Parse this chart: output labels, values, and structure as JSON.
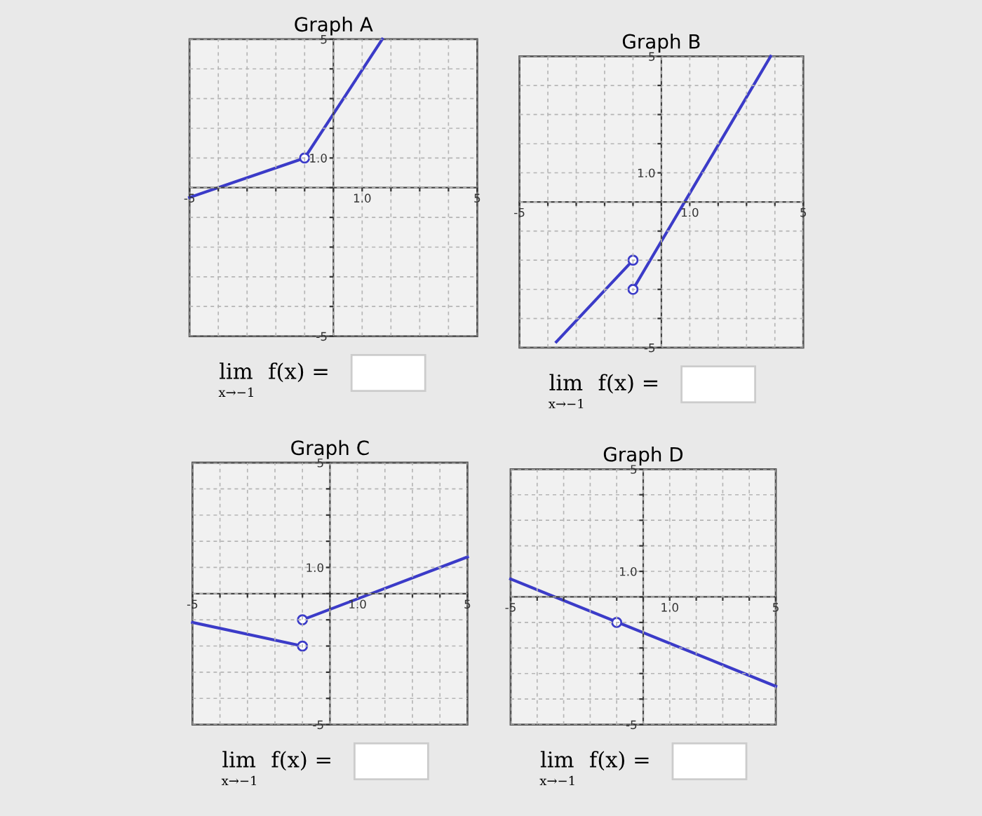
{
  "chart_data": [
    {
      "type": "line",
      "title": "Graph A",
      "xlim": [
        -5,
        5
      ],
      "ylim": [
        -5,
        5
      ],
      "xticks": [
        -5,
        {
          "value": -4,
          "label": null
        },
        {
          "value": -3,
          "label": null
        },
        {
          "value": -2,
          "label": null
        },
        {
          "value": -1,
          "label": null
        },
        {
          "value": 0,
          "label": null
        },
        {
          "value": 1,
          "label": "1.0"
        },
        {
          "value": 2,
          "label": null
        },
        {
          "value": 3,
          "label": null
        },
        {
          "value": 4,
          "label": null
        },
        5
      ],
      "yticks": [
        -5,
        {
          "value": -4,
          "label": null
        },
        {
          "value": -3,
          "label": null
        },
        {
          "value": -2,
          "label": null
        },
        {
          "value": -1,
          "label": null
        },
        {
          "value": 0,
          "label": null
        },
        {
          "value": 1,
          "label": "1.0"
        },
        {
          "value": 2,
          "label": null
        },
        {
          "value": 3,
          "label": null
        },
        {
          "value": 4,
          "label": null
        },
        5
      ],
      "grid": true,
      "line_style": "solid",
      "annotations": [
        "lim",
        "x→−1",
        "f(x) ="
      ],
      "series": [
        {
          "color": "#3b3bc8",
          "x": [
            -5,
            -1
          ],
          "values": [
            -0.33,
            1
          ]
        },
        {
          "color": "#3b3bc8",
          "x": [
            -1,
            1.7
          ],
          "values": [
            1,
            5
          ]
        },
        {
          "type": "scatter",
          "marker": "circle",
          "color": "#3b3bc8",
          "x": [
            -1
          ],
          "values": [
            1
          ]
        }
      ]
    },
    {
      "type": "line",
      "title": "Graph B",
      "xlim": [
        -5,
        5
      ],
      "ylim": [
        -5,
        5
      ],
      "xticks": [
        -5,
        {
          "value": -4,
          "label": null
        },
        {
          "value": -3,
          "label": null
        },
        {
          "value": -2,
          "label": null
        },
        {
          "value": -1,
          "label": null
        },
        {
          "value": 0,
          "label": null
        },
        {
          "value": 1,
          "label": "1.0"
        },
        {
          "value": 2,
          "label": null
        },
        {
          "value": 3,
          "label": null
        },
        {
          "value": 4,
          "label": null
        },
        5
      ],
      "yticks": [
        -5,
        {
          "value": -4,
          "label": null
        },
        {
          "value": -3,
          "label": null
        },
        {
          "value": -2,
          "label": null
        },
        {
          "value": -1,
          "label": null
        },
        {
          "value": 0,
          "label": null
        },
        {
          "value": 1,
          "label": "1.0"
        },
        {
          "value": 2,
          "label": null
        },
        {
          "value": 3,
          "label": null
        },
        {
          "value": 4,
          "label": null
        },
        5
      ],
      "grid": true,
      "line_style": "solid",
      "annotations": [
        "lim",
        "x→−1",
        "f(x) ="
      ],
      "series": [
        {
          "color": "#3b3bc8",
          "x": [
            -3.7,
            -1
          ],
          "values": [
            -4.8,
            -2
          ]
        },
        {
          "color": "#3b3bc8",
          "x": [
            -1,
            3.85
          ],
          "values": [
            -3,
            5
          ]
        },
        {
          "type": "scatter",
          "marker": "circle",
          "color": "#3b3bc8",
          "x": [
            -1,
            -1
          ],
          "values": [
            -2,
            -3
          ]
        }
      ]
    },
    {
      "type": "line",
      "title": "Graph C",
      "xlim": [
        -5,
        5
      ],
      "ylim": [
        -5,
        5
      ],
      "xticks": [
        -5,
        {
          "value": -4,
          "label": null
        },
        {
          "value": -3,
          "label": null
        },
        {
          "value": -2,
          "label": null
        },
        {
          "value": -1,
          "label": null
        },
        {
          "value": 0,
          "label": null
        },
        {
          "value": 1,
          "label": "1.0"
        },
        {
          "value": 2,
          "label": null
        },
        {
          "value": 3,
          "label": null
        },
        {
          "value": 4,
          "label": null
        },
        5
      ],
      "yticks": [
        -5,
        {
          "value": -4,
          "label": null
        },
        {
          "value": -3,
          "label": null
        },
        {
          "value": -2,
          "label": null
        },
        {
          "value": -1,
          "label": null
        },
        {
          "value": 0,
          "label": null
        },
        {
          "value": 1,
          "label": "1.0"
        },
        {
          "value": 2,
          "label": null
        },
        {
          "value": 3,
          "label": null
        },
        {
          "value": 4,
          "label": null
        },
        5
      ],
      "grid": true,
      "line_style": "solid",
      "annotations": [
        "lim",
        "x→−1",
        "f(x) ="
      ],
      "series": [
        {
          "color": "#3b3bc8",
          "x": [
            -5,
            -1
          ],
          "values": [
            -1.1,
            -2
          ]
        },
        {
          "color": "#3b3bc8",
          "x": [
            -1,
            5
          ],
          "values": [
            -1,
            1.4
          ]
        },
        {
          "type": "scatter",
          "marker": "circle",
          "color": "#3b3bc8",
          "x": [
            -1,
            -1
          ],
          "values": [
            -2,
            -1
          ]
        }
      ]
    },
    {
      "type": "line",
      "title": "Graph D",
      "xlim": [
        -5,
        5
      ],
      "ylim": [
        -5,
        5
      ],
      "xticks": [
        -5,
        {
          "value": -4,
          "label": null
        },
        {
          "value": -3,
          "label": null
        },
        {
          "value": -2,
          "label": null
        },
        {
          "value": -1,
          "label": null
        },
        {
          "value": 0,
          "label": null
        },
        {
          "value": 1,
          "label": "1.0"
        },
        {
          "value": 2,
          "label": null
        },
        {
          "value": 3,
          "label": null
        },
        {
          "value": 4,
          "label": null
        },
        5
      ],
      "yticks": [
        -5,
        {
          "value": -4,
          "label": null
        },
        {
          "value": -3,
          "label": null
        },
        {
          "value": -2,
          "label": null
        },
        {
          "value": -1,
          "label": null
        },
        {
          "value": 0,
          "label": null
        },
        {
          "value": 1,
          "label": "1.0"
        },
        {
          "value": 2,
          "label": null
        },
        {
          "value": 3,
          "label": null
        },
        {
          "value": 4,
          "label": null
        },
        5
      ],
      "grid": true,
      "line_style": "solid",
      "annotations": [
        "lim",
        "x→−1",
        "f(x) ="
      ],
      "series": [
        {
          "color": "#3b3bc8",
          "x": [
            -5,
            5
          ],
          "values": [
            0.7,
            -3.5
          ]
        },
        {
          "type": "scatter",
          "marker": "circle",
          "color": "#3b3bc8",
          "x": [
            -1
          ],
          "values": [
            -1
          ]
        }
      ]
    }
  ]
}
